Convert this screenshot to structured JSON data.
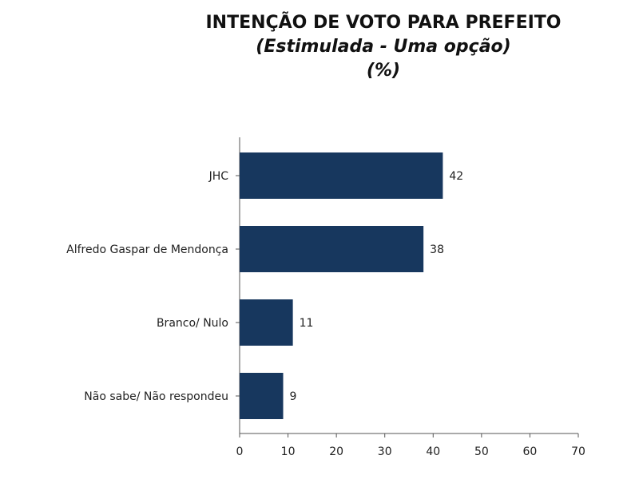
{
  "chart_data": {
    "type": "bar",
    "orientation": "horizontal",
    "title": "INTENÇÃO DE VOTO PARA PREFEITO",
    "subtitle": "(Estimulada - Uma opção)",
    "unit": "(%)",
    "categories": [
      "JHC",
      "Alfredo Gaspar de Mendonça",
      "Branco/ Nulo",
      "Não sabe/ Não respondeu"
    ],
    "values": [
      42,
      38,
      11,
      9
    ],
    "value_labels": [
      "42",
      "38",
      "11",
      "9"
    ],
    "xlim": [
      0,
      70
    ],
    "x_ticks": [
      "0",
      "10",
      "20",
      "30",
      "40",
      "50",
      "60",
      "70"
    ],
    "bar_color": "#17375e",
    "grid": false
  }
}
